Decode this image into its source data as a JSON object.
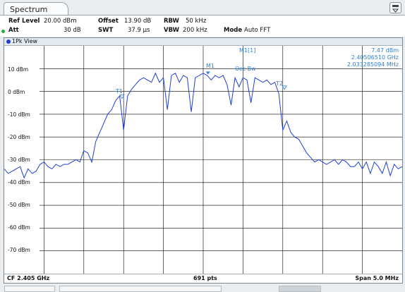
{
  "tab": {
    "label": "Spectrum"
  },
  "settings": {
    "ref_level_label": "Ref Level",
    "ref_level_value": "20.00 dBm",
    "offset_label": "Offset",
    "offset_value": "13.90 dB",
    "rbw_label": "RBW",
    "rbw_value": "50 kHz",
    "att_label": "Att",
    "att_value": "30 dB",
    "swt_label": "SWT",
    "swt_value": "37.9 µs",
    "vbw_label": "VBW",
    "vbw_value": "200 kHz",
    "mode_label": "Mode",
    "mode_value": "Auto FFT"
  },
  "view": {
    "title": "1Pk View"
  },
  "y_axis": {
    "labels": [
      "10 dBm",
      "0 dBm",
      "-10 dBm",
      "-20 dBm",
      "-30 dBm",
      "-40 dBm",
      "-50 dBm",
      "-60 dBm",
      "-70 dBm"
    ]
  },
  "marker": {
    "name": "M1[1]",
    "level": "7.47 dBm",
    "frequency": "2.40506510 GHz",
    "occ_bw_value": "2.033285094 MHz",
    "m1_label": "M1",
    "occ_bw_label": "Occ Bw",
    "t1_label": "T1",
    "t2_label": "T2"
  },
  "footer": {
    "center": "CF 2.405 GHz",
    "points": "691 pts",
    "span": "Span 5.0 MHz"
  },
  "colors": {
    "trace": "#1f3fd0",
    "marker": "#2b7fd1",
    "grid": "#bfc5ca"
  },
  "chart_data": {
    "type": "line",
    "xlabel": "",
    "ylabel": "",
    "x_range_mhz": [
      -2.5,
      2.5
    ],
    "ylim": [
      -80,
      20
    ],
    "grid": true,
    "series": [
      {
        "x_mhz": [
          -2.5,
          -2.45,
          -2.4,
          -2.35,
          -2.3,
          -2.25,
          -2.2,
          -2.15,
          -2.1,
          -2.05,
          -2.0,
          -1.95,
          -1.9,
          -1.85,
          -1.8,
          -1.75,
          -1.7,
          -1.65,
          -1.6,
          -1.55,
          -1.5,
          -1.45,
          -1.4,
          -1.35,
          -1.3,
          -1.25,
          -1.2,
          -1.15,
          -1.1,
          -1.05,
          -1.0,
          -0.95,
          -0.9,
          -0.85,
          -0.8,
          -0.75,
          -0.7,
          -0.65,
          -0.6,
          -0.55,
          -0.5,
          -0.45,
          -0.4,
          -0.35,
          -0.3,
          -0.25,
          -0.2,
          -0.15,
          -0.1,
          -0.05,
          0.0,
          0.05,
          0.1,
          0.15,
          0.2,
          0.25,
          0.3,
          0.35,
          0.4,
          0.45,
          0.5,
          0.55,
          0.6,
          0.65,
          0.7,
          0.75,
          0.8,
          0.85,
          0.9,
          0.95,
          1.0,
          1.05,
          1.1,
          1.15,
          1.2,
          1.25,
          1.3,
          1.35,
          1.4,
          1.45,
          1.5,
          1.55,
          1.6,
          1.65,
          1.7,
          1.75,
          1.8,
          1.85,
          1.9,
          1.95,
          2.0,
          2.05,
          2.1,
          2.15,
          2.2,
          2.25,
          2.3,
          2.35,
          2.4,
          2.45,
          2.5
        ],
        "y_dbm": [
          -34,
          -36,
          -35,
          -34,
          -33,
          -38,
          -34,
          -36,
          -35,
          -32,
          -31,
          -33,
          -34,
          -32,
          -33,
          -32,
          -32,
          -31,
          -30,
          -31,
          -26,
          -27,
          -31,
          -22,
          -18,
          -14,
          -10,
          -8,
          -4,
          -2,
          -17,
          -2,
          1,
          3,
          5,
          6,
          5,
          4,
          8,
          4,
          6,
          -8,
          7,
          8,
          4,
          7,
          6,
          -9,
          6,
          7,
          8,
          7,
          5,
          7,
          6,
          7,
          3,
          -6,
          6,
          2,
          6,
          5,
          -5,
          6,
          5,
          4,
          5,
          3,
          4,
          -1,
          -17,
          -13,
          -18,
          -20,
          -21,
          -24,
          -27,
          -29,
          -31,
          -30,
          -31,
          -32,
          -31,
          -30,
          -32,
          -30,
          -31,
          -33,
          -33,
          -31,
          -34,
          -31,
          -36,
          -31,
          -33,
          -36,
          -31,
          -37,
          -32,
          -34,
          -33
        ]
      }
    ]
  }
}
